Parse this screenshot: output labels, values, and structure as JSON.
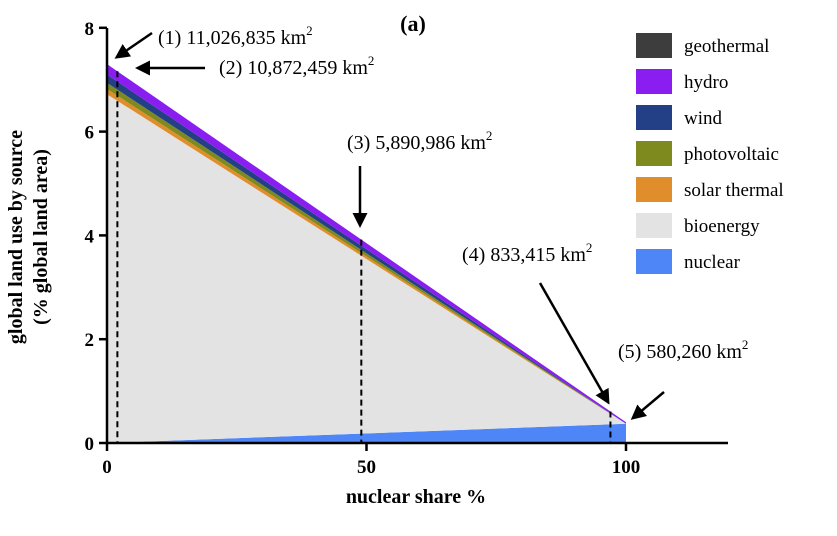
{
  "chart_data": {
    "type": "area",
    "panel_label": "(a)",
    "xlabel": "nuclear share %",
    "ylabel_line1": "global land use by source",
    "ylabel_line2": "(% global land area)",
    "xlim": [
      0,
      120
    ],
    "ylim": [
      0,
      8
    ],
    "x_ticks": [
      0,
      50,
      100
    ],
    "y_ticks": [
      0,
      2,
      4,
      6,
      8
    ],
    "x": [
      0,
      100
    ],
    "series": [
      {
        "name": "nuclear",
        "color": "#4f86f7",
        "values": [
          0.0,
          0.37
        ]
      },
      {
        "name": "bioenergy",
        "color": "#e3e3e3",
        "values": [
          6.72,
          0.0
        ]
      },
      {
        "name": "solar thermal",
        "color": "#e08e2b",
        "values": [
          0.1,
          0.0
        ]
      },
      {
        "name": "photovoltaic",
        "color": "#7e8a1e",
        "values": [
          0.12,
          0.0
        ]
      },
      {
        "name": "wind",
        "color": "#233f86",
        "values": [
          0.16,
          0.0
        ]
      },
      {
        "name": "hydro",
        "color": "#8a1df0",
        "values": [
          0.2,
          0.03
        ]
      },
      {
        "name": "geothermal",
        "color": "#3d3d3d",
        "values": [
          0.0,
          0.0
        ]
      }
    ],
    "legend_order": [
      "geothermal",
      "hydro",
      "wind",
      "photovoltaic",
      "solar thermal",
      "bioenergy",
      "nuclear"
    ],
    "legend_position": "top-right",
    "annotations": [
      {
        "label": "(1)",
        "value": "11,026,835",
        "unit": "km",
        "sup": "2",
        "at_x": 0
      },
      {
        "label": "(2)",
        "value": "10,872,459",
        "unit": "km",
        "sup": "2",
        "at_x": 2
      },
      {
        "label": "(3)",
        "value": "5,890,986",
        "unit": "km",
        "sup": "2",
        "at_x": 49
      },
      {
        "label": "(4)",
        "value": "833,415",
        "unit": "km",
        "sup": "2",
        "at_x": 97
      },
      {
        "label": "(5)",
        "value": "580,260",
        "unit": "km",
        "sup": "2",
        "at_x": 100
      }
    ],
    "dashed_lines_x": [
      2,
      49,
      97
    ]
  }
}
